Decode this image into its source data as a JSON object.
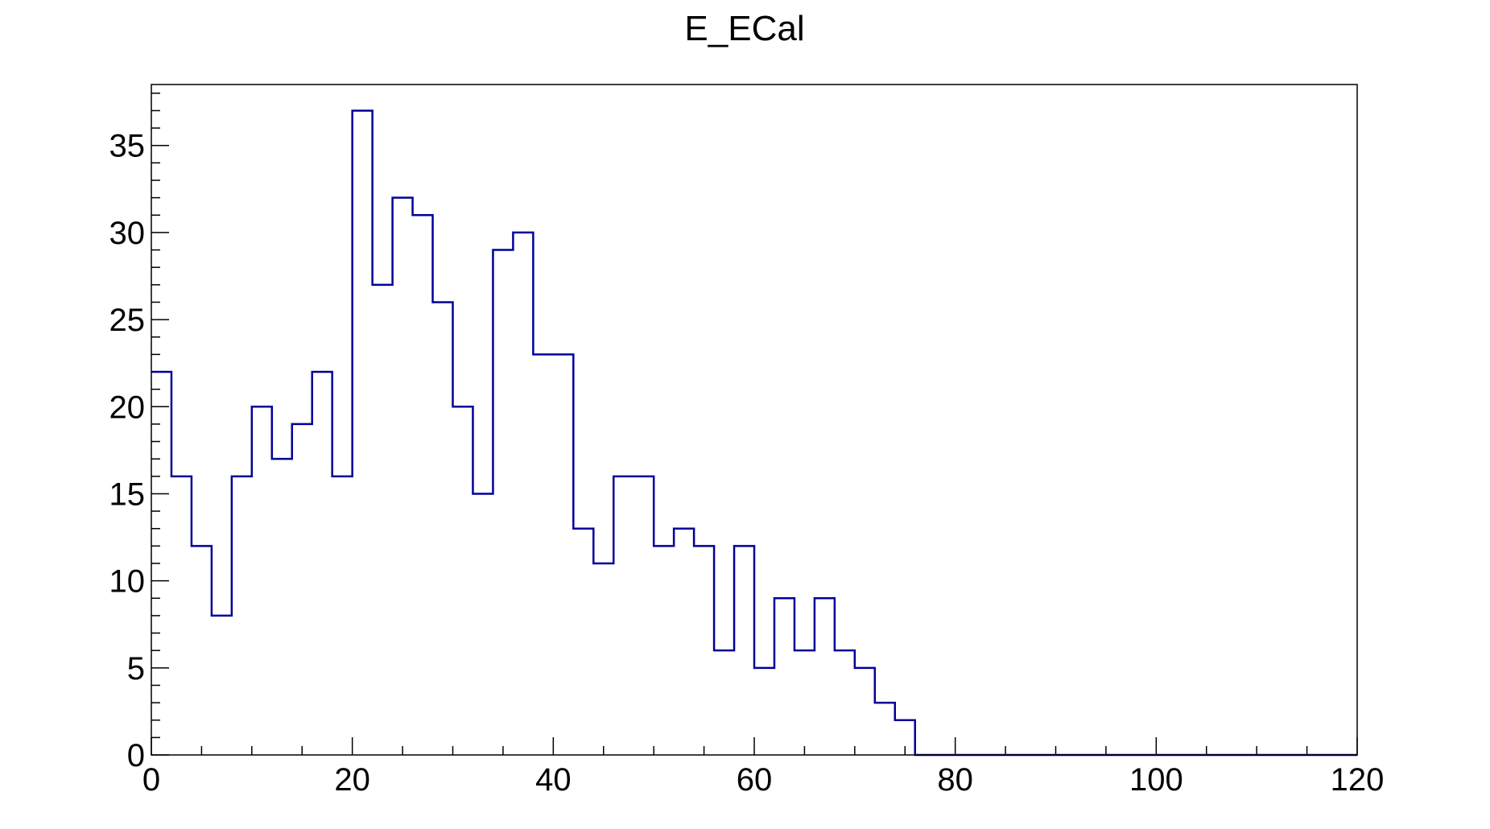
{
  "chart_data": {
    "type": "histogram",
    "title": "E_ECal",
    "xlabel": "",
    "ylabel": "",
    "xlim": [
      0,
      120
    ],
    "ylim": [
      0,
      38.5
    ],
    "bin_width": 2,
    "bin_start": 0,
    "counts": [
      22,
      16,
      12,
      8,
      16,
      20,
      17,
      19,
      22,
      16,
      37,
      27,
      32,
      31,
      26,
      20,
      15,
      29,
      30,
      23,
      23,
      13,
      11,
      16,
      16,
      12,
      13,
      12,
      6,
      12,
      5,
      9,
      6,
      9,
      6,
      5,
      3,
      2,
      0,
      0,
      0,
      0,
      0,
      0,
      0,
      0,
      0,
      0,
      0,
      0,
      0,
      0,
      0,
      0,
      0,
      0,
      0,
      0,
      0,
      0
    ],
    "x_ticks": [
      "0",
      "20",
      "40",
      "60",
      "80",
      "100",
      "120"
    ],
    "y_ticks": [
      "0",
      "5",
      "10",
      "15",
      "20",
      "25",
      "30",
      "35"
    ],
    "line_color": "#000099",
    "grid": false
  }
}
